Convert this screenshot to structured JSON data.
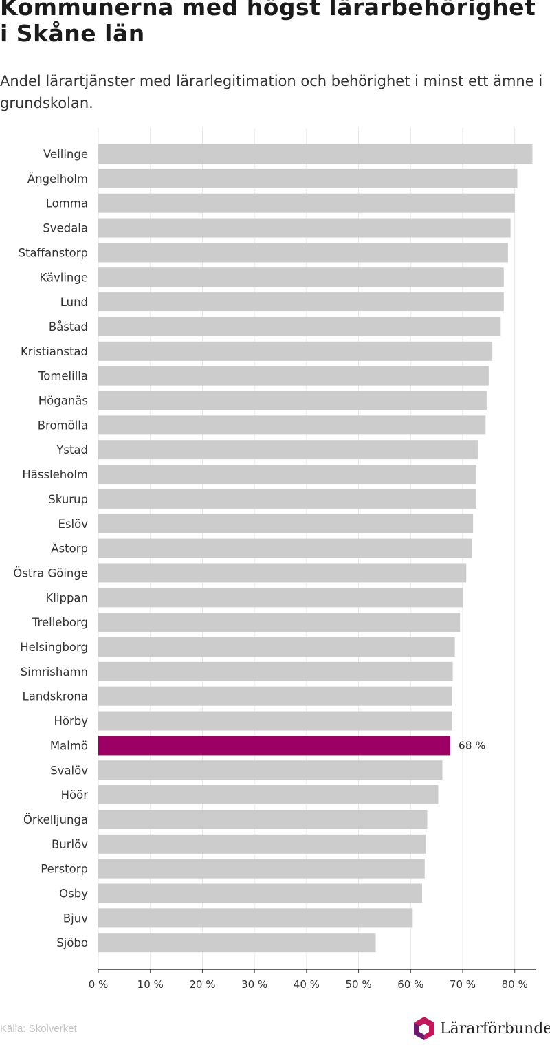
{
  "title": "Kommunerna med högst lärarbehörighet i Skåne län",
  "subtitle": "Andel lärartjänster med lärarlegitimation och behörighet i minst ett ämne i grundskolan.",
  "source": "Källa: Skolverket",
  "logo_text": "Lärarförbundet",
  "colors": {
    "bar": "#cccccc",
    "highlight": "#9c0064",
    "gridline": "#e6e6e6",
    "axis": "#333333",
    "logo_magenta": "#c2185b",
    "logo_purple": "#6a1b6e"
  },
  "chart_data": {
    "type": "bar",
    "orientation": "horizontal",
    "categories": [
      "Vellinge",
      "Ängelholm",
      "Lomma",
      "Svedala",
      "Staffanstorp",
      "Kävlinge",
      "Lund",
      "Båstad",
      "Kristianstad",
      "Tomelilla",
      "Höganäs",
      "Bromölla",
      "Ystad",
      "Hässleholm",
      "Skurup",
      "Eslöv",
      "Åstorp",
      "Östra Göinge",
      "Klippan",
      "Trelleborg",
      "Helsingborg",
      "Simrishamn",
      "Landskrona",
      "Hörby",
      "Malmö",
      "Svalöv",
      "Höör",
      "Örkelljunga",
      "Burlöv",
      "Perstorp",
      "Osby",
      "Bjuv",
      "Sjöbo"
    ],
    "values": [
      83.4,
      80.5,
      80.0,
      79.2,
      78.7,
      77.9,
      77.9,
      77.3,
      75.7,
      75.0,
      74.6,
      74.4,
      72.9,
      72.6,
      72.6,
      72.0,
      71.8,
      70.7,
      70.0,
      69.5,
      68.5,
      68.1,
      68.0,
      67.9,
      67.6,
      66.1,
      65.3,
      63.2,
      63.0,
      62.7,
      62.2,
      60.4,
      53.3
    ],
    "highlight": "Malmö",
    "data_labels": [
      {
        "category": "Malmö",
        "label": "68 %"
      }
    ],
    "xlim": [
      0,
      84
    ],
    "x_ticks": [
      0,
      10,
      20,
      30,
      40,
      50,
      60,
      70,
      80
    ],
    "x_tick_labels": [
      "0 %",
      "10 %",
      "20 %",
      "30 %",
      "40 %",
      "50 %",
      "60 %",
      "70 %",
      "80 %"
    ],
    "grid": true,
    "xlabel": "",
    "ylabel": ""
  }
}
